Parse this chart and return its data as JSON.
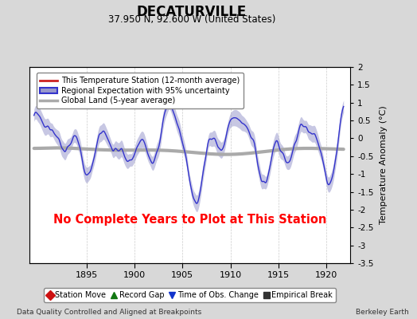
{
  "title": "DECATURVILLE",
  "subtitle": "37.950 N, 92.600 W (United States)",
  "ylabel": "Temperature Anomaly (°C)",
  "footer_left": "Data Quality Controlled and Aligned at Breakpoints",
  "footer_right": "Berkeley Earth",
  "no_data_text": "No Complete Years to Plot at This Station",
  "xlim": [
    1889.0,
    1922.5
  ],
  "ylim": [
    -3.5,
    2.0
  ],
  "yticks": [
    2.0,
    1.5,
    1.0,
    0.5,
    0.0,
    -0.5,
    -1.0,
    -1.5,
    -2.0,
    -2.5,
    -3.0,
    -3.5
  ],
  "xticks": [
    1895,
    1900,
    1905,
    1910,
    1915,
    1920
  ],
  "regional_color": "#3333cc",
  "regional_fill_color": "#9999cc",
  "global_color": "#aaaaaa",
  "station_color": "#cc2222",
  "background_color": "#d8d8d8",
  "plot_background": "#ffffff",
  "legend_entries": [
    "This Temperature Station (12-month average)",
    "Regional Expectation with 95% uncertainty",
    "Global Land (5-year average)"
  ],
  "bottom_legend": [
    {
      "symbol": "D",
      "color": "#cc1111",
      "label": "Station Move"
    },
    {
      "symbol": "^",
      "color": "#117711",
      "label": "Record Gap"
    },
    {
      "symbol": "v",
      "color": "#1133cc",
      "label": "Time of Obs. Change"
    },
    {
      "symbol": "s",
      "color": "#333333",
      "label": "Empirical Break"
    }
  ],
  "seed": 99,
  "n_points": 700,
  "x_start": 1889.5,
  "x_end": 1921.8
}
